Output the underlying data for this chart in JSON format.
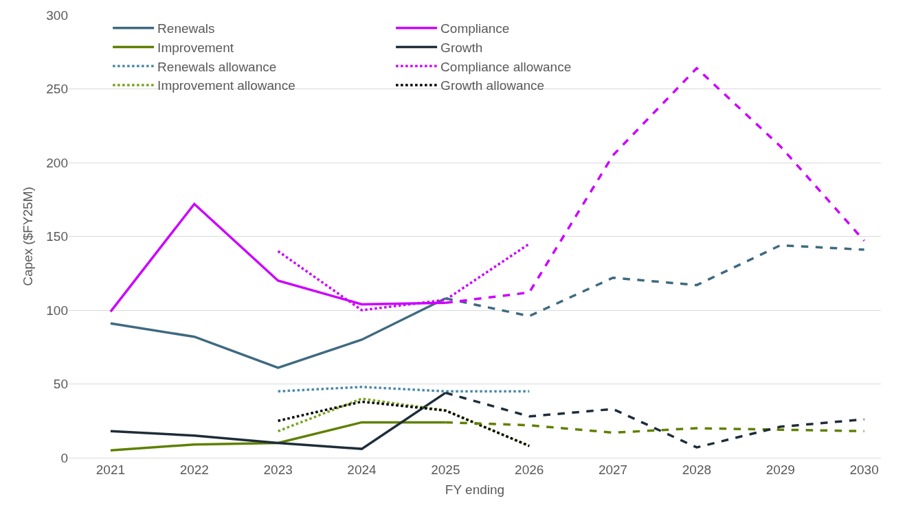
{
  "chart_data": {
    "type": "line",
    "xlabel": "FY ending",
    "ylabel": "Capex ($FY25M)",
    "xlim": [
      2020.5,
      2030.2
    ],
    "xticks": [
      2021,
      2022,
      2023,
      2024,
      2025,
      2026,
      2027,
      2028,
      2029,
      2030
    ],
    "ylim": [
      0,
      300
    ],
    "yticks": [
      0,
      50,
      100,
      150,
      200,
      250,
      300
    ],
    "grid": "y",
    "legend": "top",
    "marker": "none",
    "series": [
      {
        "name": "Renewals",
        "color": "#3e6a80",
        "line_style": "solid",
        "x": [
          2021,
          2022,
          2023,
          2024,
          2025
        ],
        "values": [
          91,
          82,
          61,
          80,
          108
        ]
      },
      {
        "name": "Compliance",
        "color": "#cc00ff",
        "line_style": "solid",
        "x": [
          2021,
          2022,
          2023,
          2024,
          2025
        ],
        "values": [
          99,
          172,
          120,
          104,
          105
        ]
      },
      {
        "name": "Improvement",
        "color": "#5f8000",
        "line_style": "solid",
        "x": [
          2021,
          2022,
          2023,
          2024,
          2025
        ],
        "values": [
          5,
          9,
          10,
          24,
          24
        ]
      },
      {
        "name": "Growth",
        "color": "#1e2d38",
        "line_style": "solid",
        "x": [
          2021,
          2022,
          2023,
          2024,
          2025
        ],
        "values": [
          18,
          15,
          10,
          6,
          44
        ]
      },
      {
        "name": "Renewals allowance",
        "color": "#4a8aa8",
        "line_style": "dotted",
        "x": [
          2023,
          2024,
          2025,
          2026
        ],
        "values": [
          45,
          48,
          45,
          45
        ]
      },
      {
        "name": "Compliance allowance",
        "color": "#cc00ff",
        "line_style": "dotted",
        "x": [
          2023,
          2024,
          2025,
          2026
        ],
        "values": [
          140,
          100,
          107,
          145
        ]
      },
      {
        "name": "Improvement allowance",
        "color": "#76a31a",
        "line_style": "dotted",
        "x": [
          2023,
          2024,
          2025,
          2026
        ],
        "values": [
          18,
          40,
          32,
          8
        ]
      },
      {
        "name": "Growth allowance",
        "color": "#000000",
        "line_style": "dotted",
        "x": [
          2023,
          2024,
          2025,
          2026
        ],
        "values": [
          25,
          38,
          32,
          8
        ]
      },
      {
        "color": "#3e6a80",
        "line_style": "dashed",
        "x": [
          2025,
          2026,
          2027,
          2028,
          2029,
          2030
        ],
        "values": [
          108,
          96,
          122,
          117,
          144,
          141
        ]
      },
      {
        "color": "#cc00ff",
        "line_style": "dashed",
        "x": [
          2025,
          2026,
          2027,
          2028,
          2029,
          2030
        ],
        "values": [
          105,
          112,
          205,
          264,
          211,
          147
        ]
      },
      {
        "color": "#5f8000",
        "line_style": "dashed",
        "x": [
          2025,
          2026,
          2027,
          2028,
          2029,
          2030
        ],
        "values": [
          24,
          22,
          17,
          20,
          19,
          18
        ]
      },
      {
        "color": "#1e2d38",
        "line_style": "dashed",
        "x": [
          2025,
          2026,
          2027,
          2028,
          2029,
          2030
        ],
        "values": [
          44,
          28,
          33,
          7,
          21,
          26
        ]
      }
    ]
  }
}
